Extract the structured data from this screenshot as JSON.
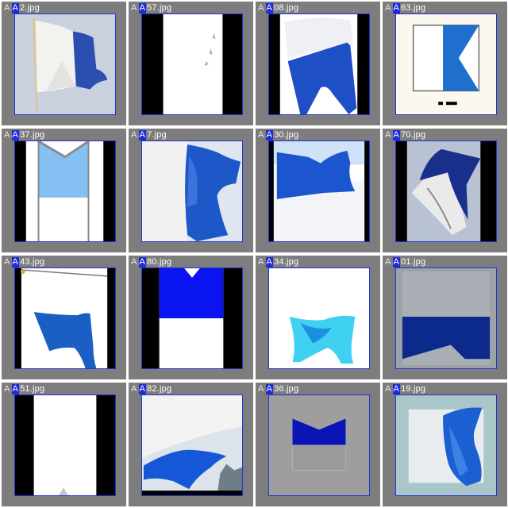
{
  "grid": {
    "tiles": [
      {
        "prefix": "A",
        "badge": "A",
        "rest": "2.jpg"
      },
      {
        "prefix": "A",
        "badge": "A",
        "rest": "57.jpg"
      },
      {
        "prefix": "A",
        "badge": "A",
        "rest": "08.jpg"
      },
      {
        "prefix": "A",
        "badge": "A",
        "rest": "63.jpg"
      },
      {
        "prefix": "A",
        "badge": "A",
        "rest": "37.jpg"
      },
      {
        "prefix": "A",
        "badge": "A",
        "rest": "7.jpg"
      },
      {
        "prefix": "A",
        "badge": "A",
        "rest": "30.jpg"
      },
      {
        "prefix": "A",
        "badge": "A",
        "rest": "70.jpg"
      },
      {
        "prefix": "A",
        "badge": "A",
        "rest": "43.jpg"
      },
      {
        "prefix": "A",
        "badge": "A",
        "rest": "80.jpg"
      },
      {
        "prefix": "A",
        "badge": "A",
        "rest": "34.jpg"
      },
      {
        "prefix": "A",
        "badge": "A",
        "rest": "01.jpg"
      },
      {
        "prefix": "A",
        "badge": "A",
        "rest": "51.jpg"
      },
      {
        "prefix": "A",
        "badge": "A",
        "rest": "82.jpg"
      },
      {
        "prefix": "A",
        "badge": "A",
        "rest": "36.jpg"
      },
      {
        "prefix": "A",
        "badge": "A",
        "rest": "19.jpg"
      }
    ]
  },
  "colors": {
    "tile_background": "#7d7d7d",
    "badge_background": "#1f2bd6",
    "thumbnail_border": "#2234d8",
    "flag_blue": "#1a5bd1"
  }
}
